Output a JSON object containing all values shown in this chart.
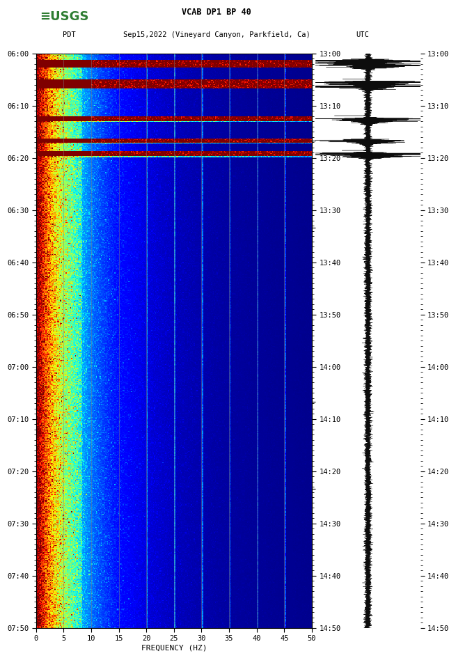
{
  "title_line1": "VCAB DP1 BP 40",
  "title_line2_left": "PDT",
  "title_line2_mid": "Sep15,2022 (Vineyard Canyon, Parkfield, Ca)",
  "title_line2_right": "UTC",
  "left_yticks": [
    "06:00",
    "06:10",
    "06:20",
    "06:30",
    "06:40",
    "06:50",
    "07:00",
    "07:10",
    "07:20",
    "07:30",
    "07:40",
    "07:50"
  ],
  "right_yticks": [
    "13:00",
    "13:10",
    "13:20",
    "13:30",
    "13:40",
    "13:50",
    "14:00",
    "14:10",
    "14:20",
    "14:30",
    "14:40",
    "14:50"
  ],
  "xticks": [
    0,
    5,
    10,
    15,
    20,
    25,
    30,
    35,
    40,
    45,
    50
  ],
  "xlabel": "FREQUENCY (HZ)",
  "freq_min": 0,
  "freq_max": 50,
  "time_steps": 660,
  "freq_steps": 300,
  "background_color": "#ffffff",
  "usgs_green": "#2e7d32",
  "vline_color": "#808080",
  "vline_positions": [
    5,
    10,
    15,
    20,
    25,
    30,
    35,
    40,
    45
  ],
  "colormap": "jet",
  "noise_seed": 42
}
